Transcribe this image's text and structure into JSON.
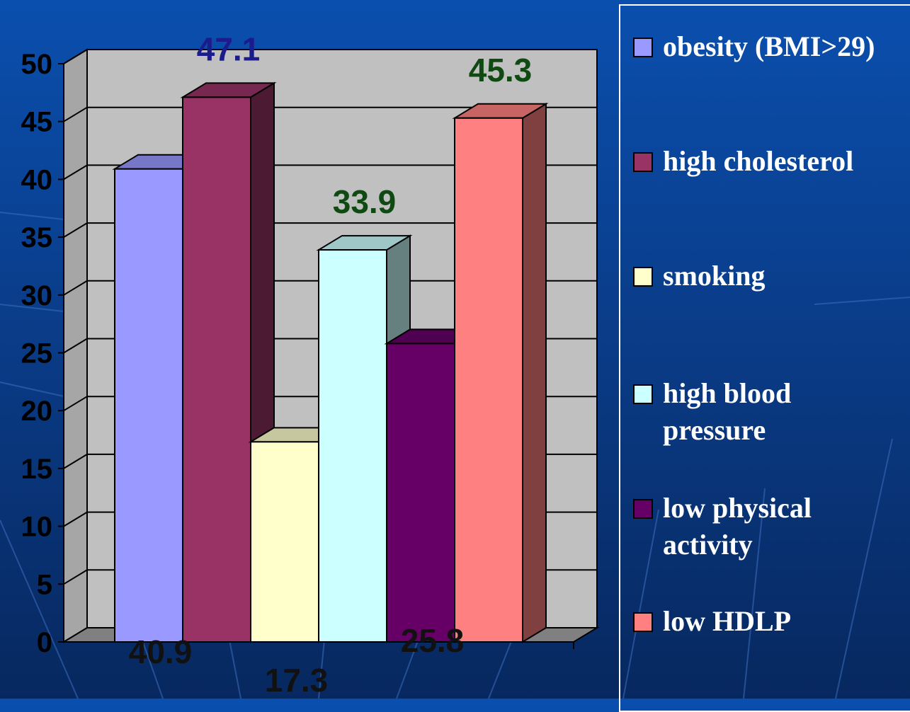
{
  "chart_data": {
    "type": "bar",
    "title": "",
    "xlabel": "",
    "ylabel": "",
    "ylim": [
      0,
      50
    ],
    "yticks": [
      0,
      5,
      10,
      15,
      20,
      25,
      30,
      35,
      40,
      45,
      50
    ],
    "grid": true,
    "style": "3d",
    "legend_position": "right",
    "series": [
      {
        "name": "obesity (BMI>29)",
        "value": 40.9,
        "label": "40.9",
        "color": "#9999ff",
        "label_color": "#111111"
      },
      {
        "name": "high cholesterol",
        "value": 47.1,
        "label": "47.1",
        "color": "#993366",
        "label_color": "#1b1b8c"
      },
      {
        "name": "smoking",
        "value": 17.3,
        "label": "17.3",
        "color": "#ffffcc",
        "label_color": "#111111"
      },
      {
        "name": "high blood pressure",
        "value": 33.9,
        "label": "33.9",
        "color": "#ccffff",
        "label_color": "#0f4a12"
      },
      {
        "name": "low physical activity",
        "value": 25.8,
        "label": "25.8",
        "color": "#660066",
        "label_color": "#111111"
      },
      {
        "name": "low HDLP",
        "value": 45.3,
        "label": "45.3",
        "color": "#ff8080",
        "label_color": "#0f4a12"
      }
    ]
  }
}
